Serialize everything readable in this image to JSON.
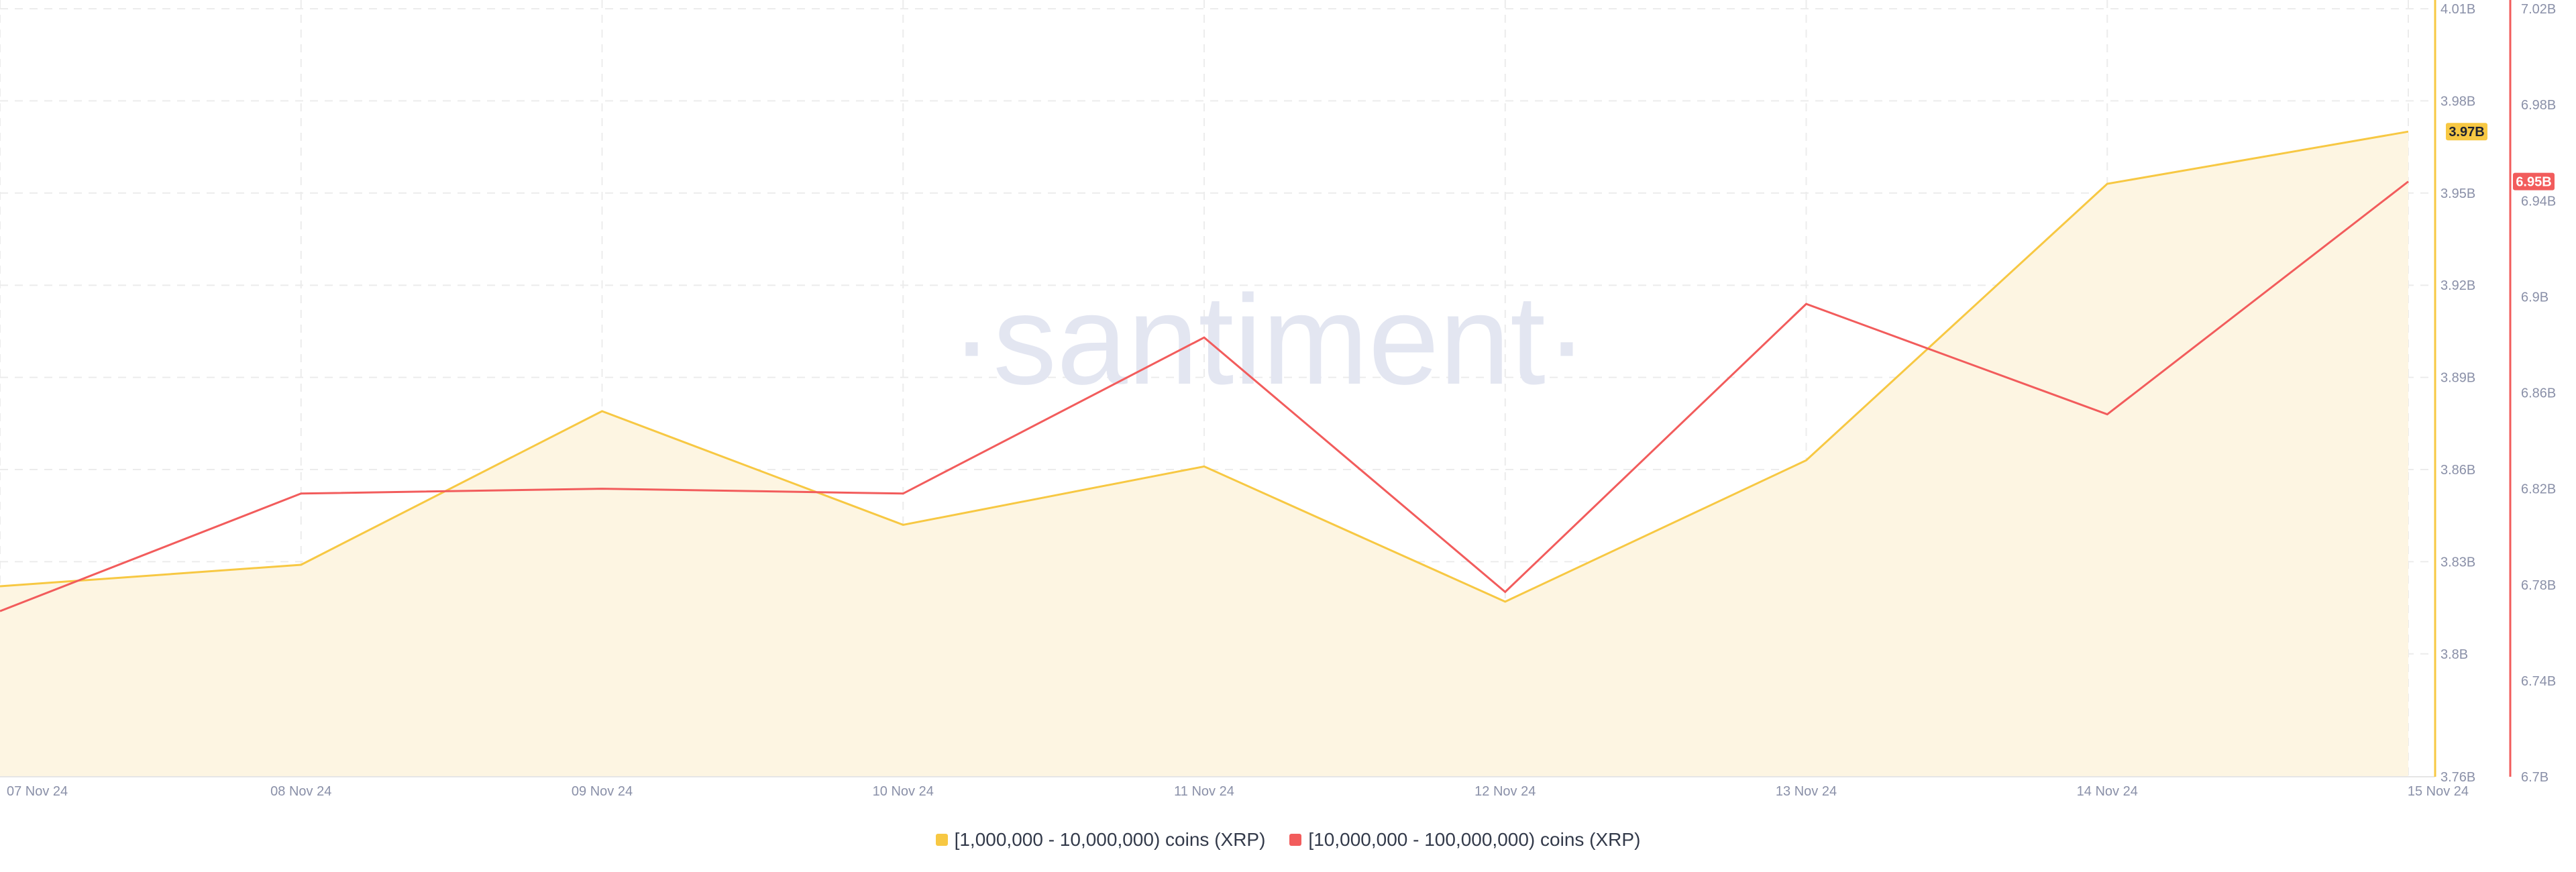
{
  "chart_data": {
    "type": "line",
    "watermark": "·santiment·",
    "x": [
      "07 Nov 24",
      "08 Nov 24",
      "09 Nov 24",
      "10 Nov 24",
      "11 Nov 24",
      "12 Nov 24",
      "13 Nov 24",
      "14 Nov 24",
      "15 Nov 24"
    ],
    "series": [
      {
        "name": "[1,000,000 - 10,000,000) coins (XRP)",
        "color": "#f7c843",
        "fill": "#fdf5e2",
        "axis": "left",
        "values": [
          3.822,
          3.829,
          3.879,
          3.842,
          3.861,
          3.817,
          3.863,
          3.953,
          3.97
        ],
        "last_value_label": "3.97B"
      },
      {
        "name": "[10,000,000 - 100,000,000) coins (XRP)",
        "color": "#f25c5c",
        "axis": "right",
        "values": [
          6.769,
          6.818,
          6.82,
          6.818,
          6.883,
          6.777,
          6.897,
          6.851,
          6.948
        ],
        "last_value_label": "6.95B"
      }
    ],
    "y_left": {
      "ticks": [
        3.76,
        3.8,
        3.83,
        3.86,
        3.89,
        3.92,
        3.95,
        3.98,
        4.01
      ],
      "tick_labels": [
        "3.76B",
        "3.8B",
        "3.83B",
        "3.86B",
        "3.89B",
        "3.92B",
        "3.95B",
        "3.98B",
        "4.01B"
      ],
      "range": [
        3.76,
        4.01
      ]
    },
    "y_right": {
      "ticks": [
        6.7,
        6.74,
        6.78,
        6.82,
        6.86,
        6.9,
        6.94,
        6.98,
        7.02
      ],
      "tick_labels": [
        "6.7B",
        "6.74B",
        "6.78B",
        "6.82B",
        "6.86B",
        "6.9B",
        "6.94B",
        "6.98B",
        "7.02B"
      ],
      "range": [
        6.7,
        7.02
      ]
    },
    "grid": true,
    "legend_position": "bottom-center"
  }
}
